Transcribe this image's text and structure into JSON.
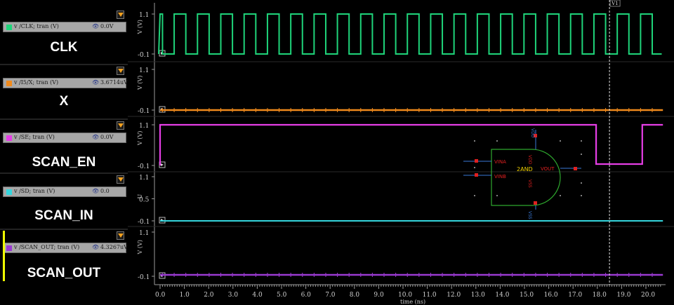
{
  "signals": [
    {
      "expr": "v /CLK; tran (V)",
      "cursor_value": "0.0V",
      "name": "CLK",
      "color": "#1fd47a",
      "y_max": "1.1",
      "y_min": "-0.1",
      "y_mid": "",
      "unit": "V (V)"
    },
    {
      "expr": "v /I5/X; tran (V)",
      "cursor_value": "3.6714uV",
      "name": "X",
      "color": "#f08a1c",
      "y_max": "1.1",
      "y_min": "-0.1",
      "y_mid": "",
      "unit": "V (V)"
    },
    {
      "expr": "v /SE; tran (V)",
      "cursor_value": "0.0V",
      "name": "SCAN_EN",
      "color": "#e63ee6",
      "y_max": "1.1",
      "y_min": "-0.1",
      "y_mid": "",
      "unit": "V (V)"
    },
    {
      "expr": "v /SD; tran (V)",
      "cursor_value": "0.0",
      "name": "SCAN_IN",
      "color": "#35d6de",
      "y_max": "1.1",
      "y_min": "-0.1",
      "y_mid": "0.5",
      "unit": "U"
    },
    {
      "expr": "v /SCAN_OUT; tran (V)",
      "cursor_value": "4.3267uV",
      "name": "SCAN_OUT",
      "color": "#9a3ad0",
      "y_max": "1.1",
      "y_min": "-0.1",
      "y_mid": "",
      "unit": "V (V)"
    }
  ],
  "x_axis": {
    "label": "time (ns)",
    "ticks": [
      "0.0",
      "1.0",
      "2.0",
      "3.0",
      "4.0",
      "5.0",
      "6.0",
      "7.0",
      "8.0",
      "9.0",
      "10.0",
      "11.0",
      "12.0",
      "13.0",
      "14.0",
      "15.0",
      "16.0",
      "17.0",
      "18.0",
      "19.0",
      "20.0"
    ],
    "range": [
      0,
      20.7
    ]
  },
  "cursor": {
    "label": "V1",
    "time_ns": 18.5
  },
  "schematic": {
    "cell": "2AND",
    "pins": {
      "in_a": "VINA",
      "in_b": "VINB",
      "out": "VOUT",
      "vdd": "VDD",
      "vss": "VSS",
      "vdd_top": "VDD",
      "vss_bot": "VSS"
    }
  },
  "waves": {
    "clk_period_ns": 0.96,
    "clk_low_first_ns": 0.1,
    "se_fall_ns": 17.95,
    "se_rise_ns": 19.85
  }
}
